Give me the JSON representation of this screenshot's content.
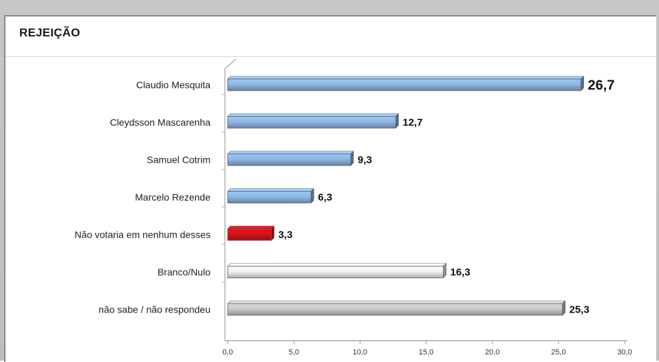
{
  "chart_data": {
    "type": "bar",
    "orientation": "horizontal",
    "title": "REJEIÇÃO",
    "categories": [
      "Claudio Mesquita",
      "Cleydsson Mascarenha",
      "Samuel Cotrim",
      "Marcelo Rezende",
      "Não votaria em nenhum desses",
      "Branco/Nulo",
      "não sabe  / não respondeu"
    ],
    "values": [
      26.7,
      12.7,
      9.3,
      6.3,
      3.3,
      16.3,
      25.3
    ],
    "value_labels": [
      "26,7",
      "12,7",
      "9,3",
      "6,3",
      "3,3",
      "16,3",
      "25,3"
    ],
    "bar_colors": [
      "#8fb8e4",
      "#8fb8e4",
      "#8fb8e4",
      "#8fb8e4",
      "#d8121a",
      "#f2f2f2",
      "#c9c9c9"
    ],
    "xlim": [
      0,
      30
    ],
    "xticks": [
      0,
      5,
      10,
      15,
      20,
      25,
      30
    ],
    "xtick_labels": [
      "0,0",
      "5,0",
      "10,0",
      "15,0",
      "20,0",
      "25,0",
      "30,0"
    ],
    "grid": false,
    "legend": "none"
  }
}
